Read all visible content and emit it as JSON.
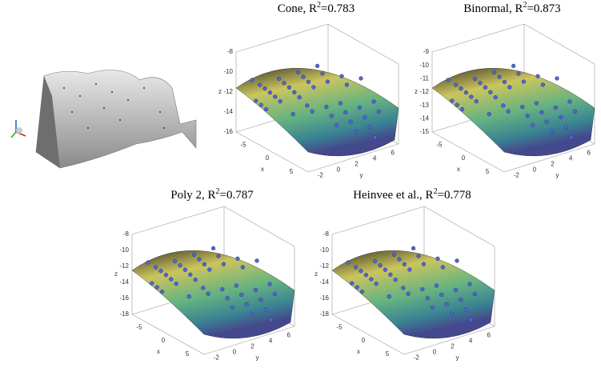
{
  "panels": [
    {
      "title": {
        "label": "Cone, R",
        "sup": "2",
        "value": "=0.783"
      },
      "z_ticks": [
        "-8",
        "-10",
        "-12",
        "-14",
        "-16"
      ],
      "x_ticks": [
        "-5",
        "0",
        "5"
      ],
      "y_ticks": [
        "-2",
        "0",
        "2",
        "4",
        "6"
      ],
      "x_label": "x",
      "y_label": "y",
      "z_label": "z"
    },
    {
      "title": {
        "label": "Binormal, R",
        "sup": "2",
        "value": "=0.873"
      },
      "z_ticks": [
        "-9",
        "-10",
        "-11",
        "-12",
        "-13",
        "-14",
        "-15"
      ],
      "x_ticks": [
        "-5",
        "0",
        "5"
      ],
      "y_ticks": [
        "-2",
        "0",
        "2",
        "4",
        "6"
      ],
      "x_label": "x",
      "y_label": "y",
      "z_label": "z"
    },
    {
      "title": {
        "label": "Poly 2, R",
        "sup": "2",
        "value": "=0.787"
      },
      "z_ticks": [
        "-8",
        "-10",
        "-12",
        "-14",
        "-16",
        "-18"
      ],
      "x_ticks": [
        "-5",
        "0",
        "5"
      ],
      "y_ticks": [
        "-2",
        "0",
        "2",
        "4",
        "6"
      ],
      "x_label": "x",
      "y_label": "y",
      "z_label": "z"
    },
    {
      "title": {
        "label": "Heinvee et al., R",
        "sup": "2",
        "value": "=0.778"
      },
      "z_ticks": [
        "-8",
        "-10",
        "-12",
        "-14",
        "-16",
        "-18"
      ],
      "x_ticks": [
        "-5",
        "0",
        "5"
      ],
      "y_ticks": [
        "-2",
        "0",
        "2",
        "4",
        "6"
      ],
      "x_label": "x",
      "y_label": "y",
      "z_label": "z"
    }
  ]
}
